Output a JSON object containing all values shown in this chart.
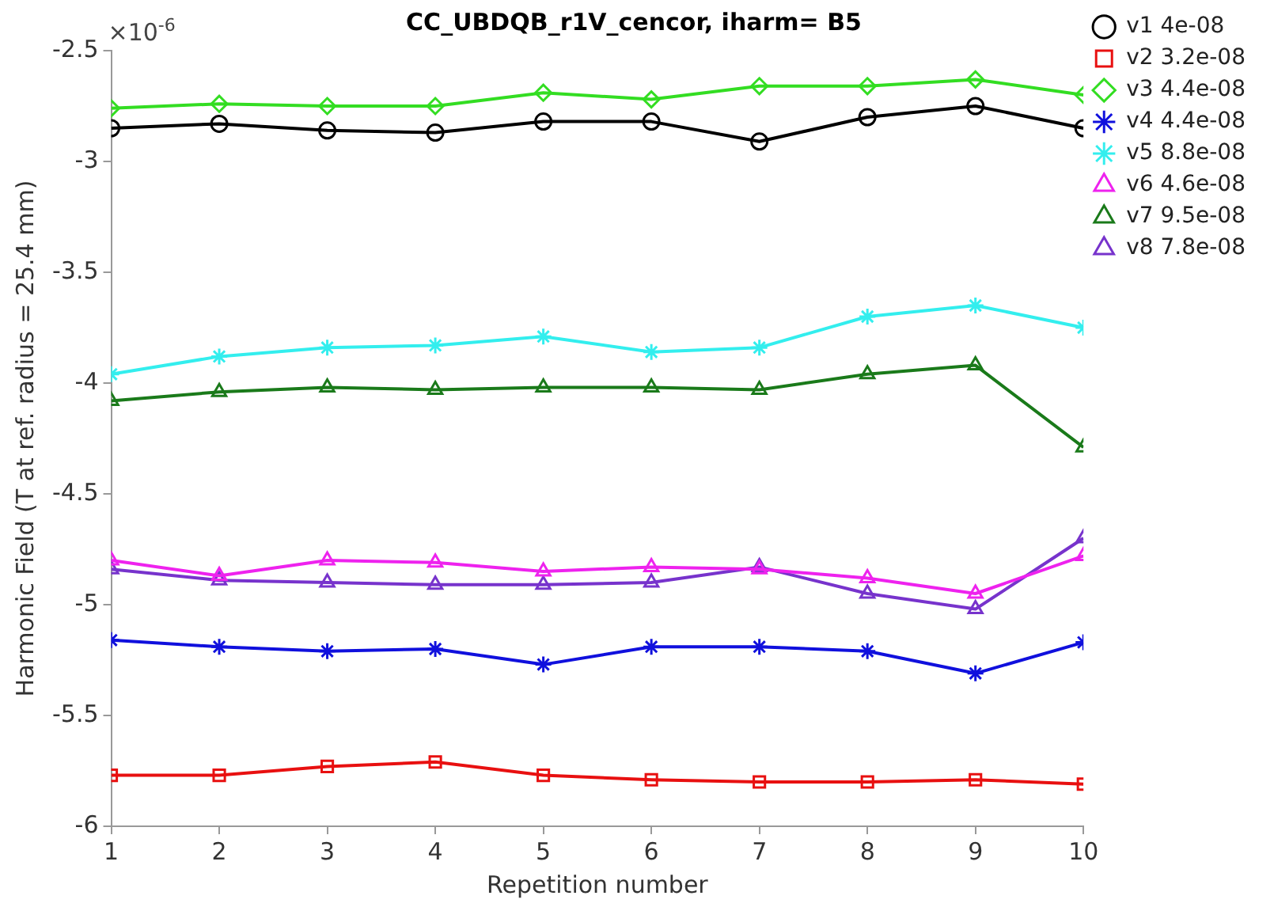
{
  "chart_data": {
    "type": "line",
    "title": "CC_UBDQB_r1V_cencor, iharm= B5",
    "xlabel": "Repetition number",
    "ylabel": "Harmonic Field (T at ref. radius = 25.4 mm)",
    "annotations": [
      "×10$^{-6}$"
    ],
    "x": [
      1,
      2,
      3,
      4,
      5,
      6,
      7,
      8,
      9,
      10
    ],
    "xlim": [
      1,
      10
    ],
    "xticks": [
      1,
      2,
      3,
      4,
      5,
      6,
      7,
      8,
      9,
      10
    ],
    "ylim": [
      -6,
      -2.5
    ],
    "yticks": [
      -6,
      -5.5,
      -5,
      -4.5,
      -4,
      -3.5,
      -3,
      -2.5
    ],
    "grid": false,
    "legend": "top right",
    "line_style": "solid",
    "series": [
      {
        "name": "v1 4e-08",
        "color": "#000000",
        "marker": "circle",
        "values": [
          -2.85,
          -2.83,
          -2.86,
          -2.87,
          -2.82,
          -2.82,
          -2.91,
          -2.8,
          -2.75,
          -2.85
        ]
      },
      {
        "name": "v2 3.2e-08",
        "color": "#e81010",
        "marker": "square",
        "values": [
          -5.77,
          -5.77,
          -5.73,
          -5.71,
          -5.77,
          -5.79,
          -5.8,
          -5.8,
          -5.79,
          -5.81
        ]
      },
      {
        "name": "v3 4.4e-08",
        "color": "#33dd22",
        "marker": "diamond",
        "values": [
          -2.76,
          -2.74,
          -2.75,
          -2.75,
          -2.69,
          -2.72,
          -2.66,
          -2.66,
          -2.63,
          -2.7
        ]
      },
      {
        "name": "v4 4.4e-08",
        "color": "#1010dd",
        "marker": "cross",
        "values": [
          -5.16,
          -5.19,
          -5.21,
          -5.2,
          -5.27,
          -5.19,
          -5.19,
          -5.21,
          -5.31,
          -5.17
        ]
      },
      {
        "name": "v5 8.8e-08",
        "color": "#33eeee",
        "marker": "cross",
        "values": [
          -3.96,
          -3.88,
          -3.84,
          -3.83,
          -3.79,
          -3.86,
          -3.84,
          -3.7,
          -3.65,
          -3.75
        ]
      },
      {
        "name": "v6 4.6e-08",
        "color": "#ee22ee",
        "marker": "triangle",
        "values": [
          -4.8,
          -4.87,
          -4.8,
          -4.81,
          -4.85,
          -4.83,
          -4.84,
          -4.88,
          -4.95,
          -4.78
        ]
      },
      {
        "name": "v7 9.5e-08",
        "color": "#1a7a1a",
        "marker": "triangle",
        "values": [
          -4.08,
          -4.04,
          -4.02,
          -4.03,
          -4.02,
          -4.02,
          -4.03,
          -3.96,
          -3.92,
          -4.29
        ]
      },
      {
        "name": "v8 7.8e-08",
        "color": "#7733cc",
        "marker": "triangle",
        "values": [
          -4.84,
          -4.89,
          -4.9,
          -4.91,
          -4.91,
          -4.9,
          -4.83,
          -4.95,
          -5.02,
          -4.7
        ]
      }
    ]
  }
}
